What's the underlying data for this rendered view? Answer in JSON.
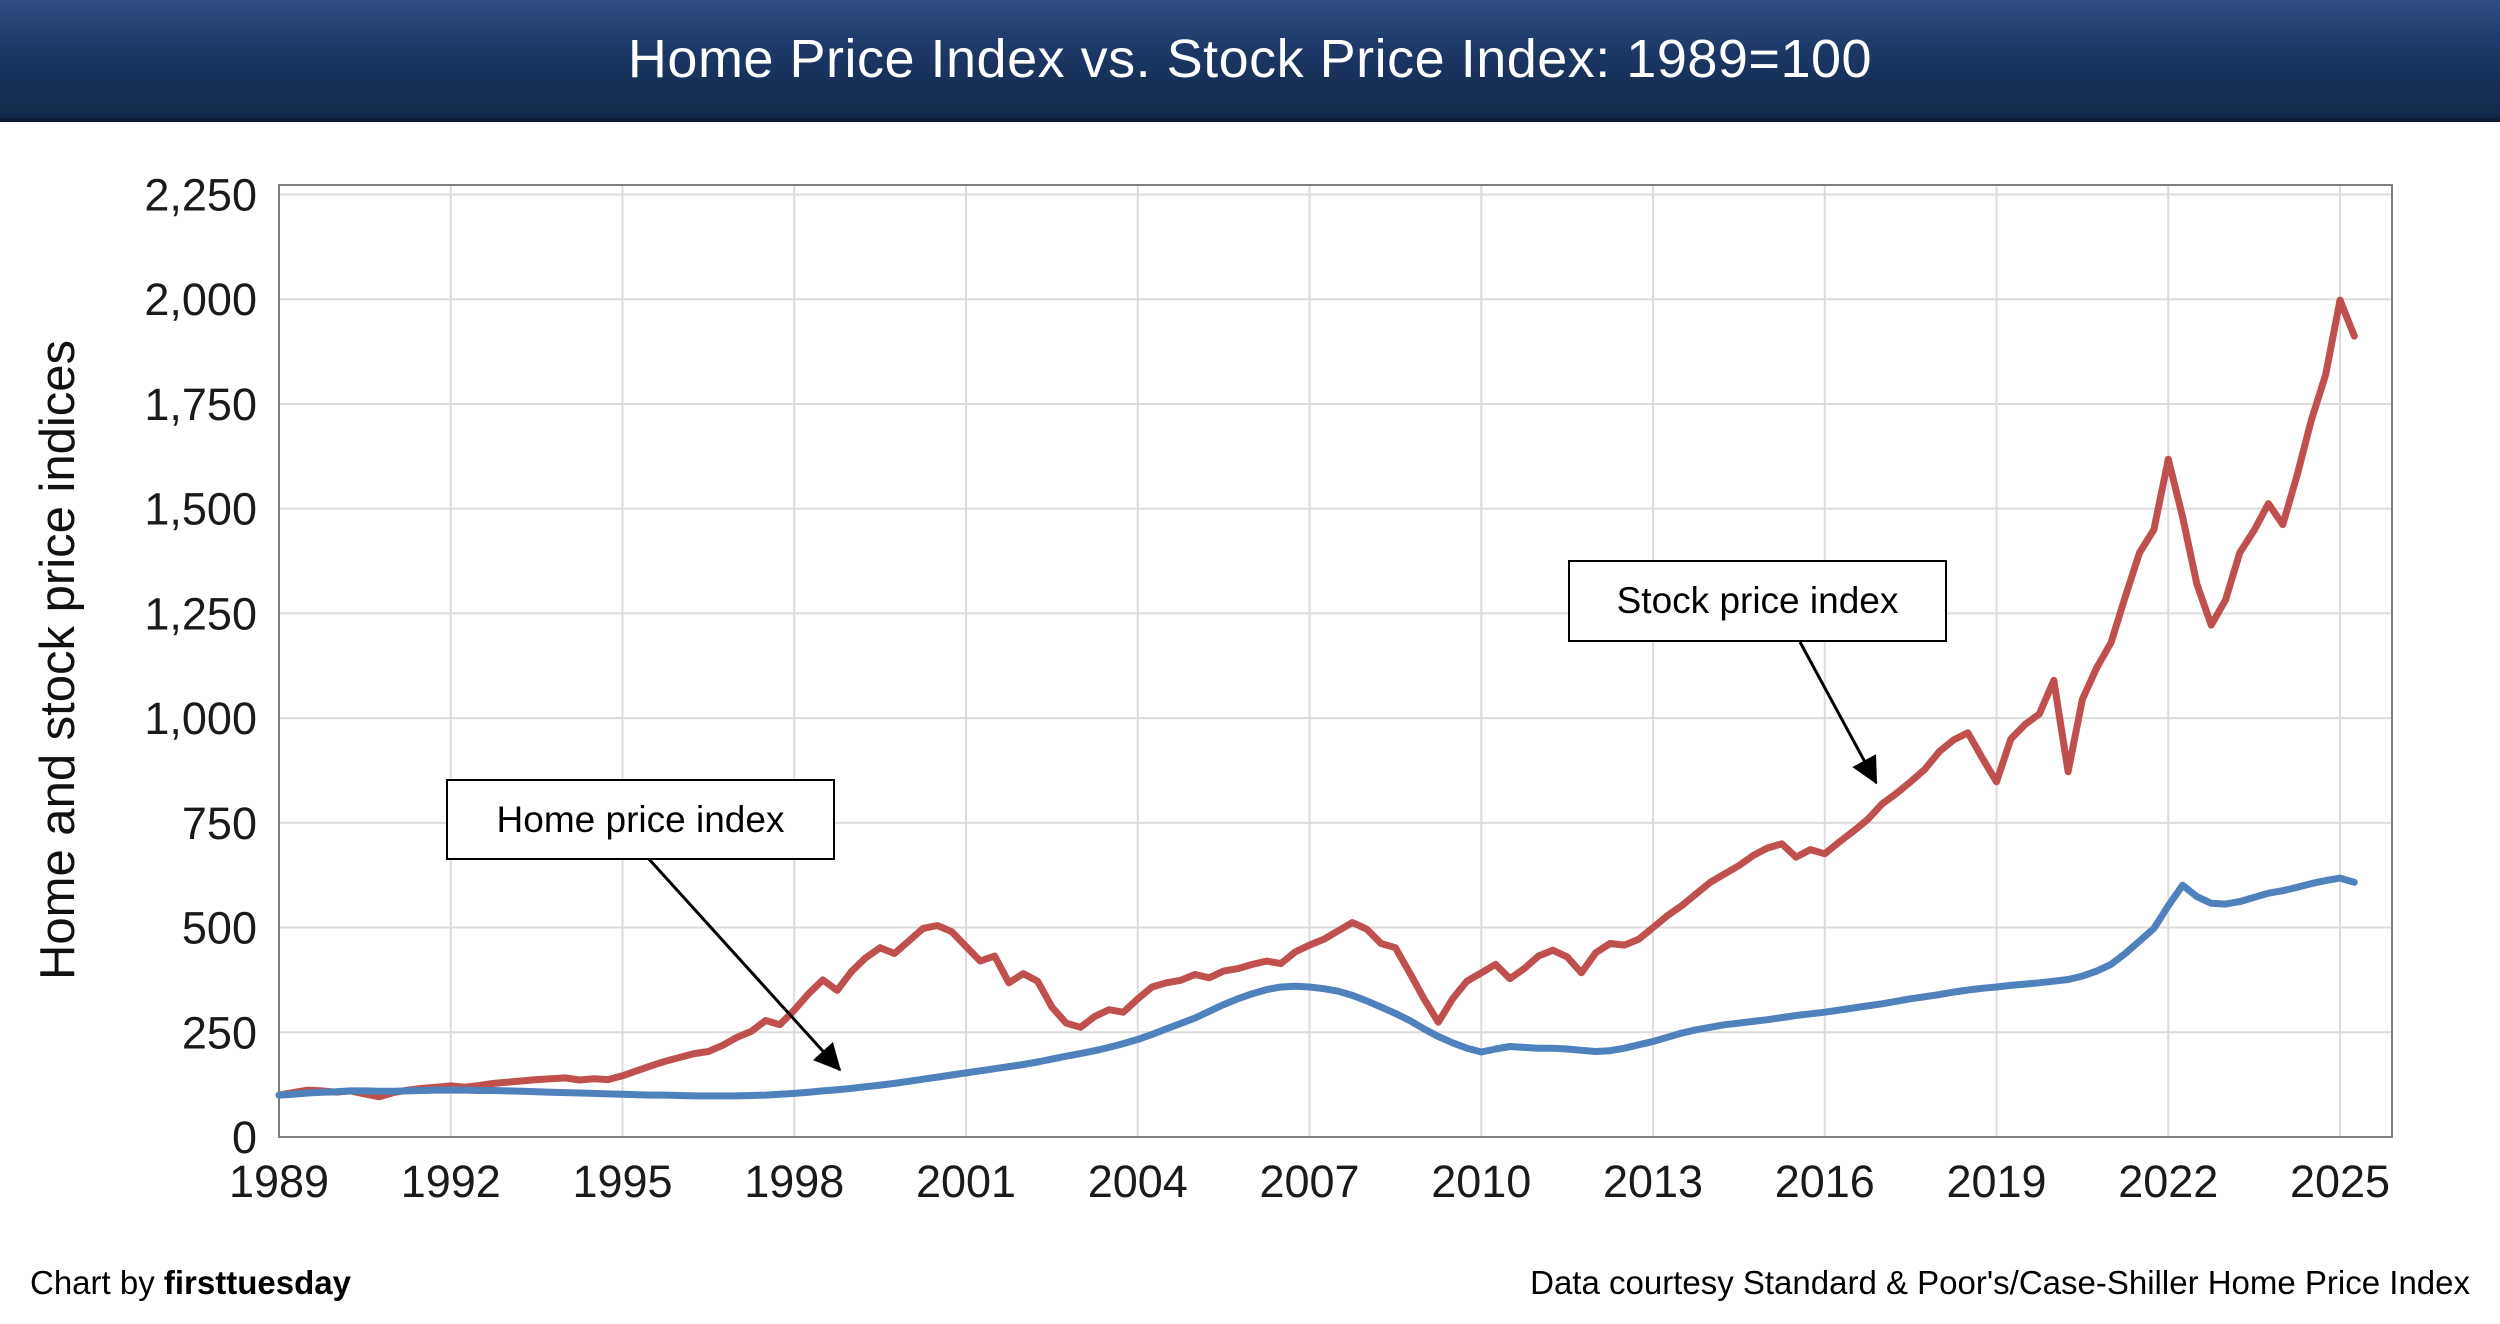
{
  "header": {
    "title": "Home Price Index vs. Stock Price Index: 1989=100"
  },
  "axes": {
    "y_label": "Home and stock price indices"
  },
  "colors": {
    "title_bar": "#1c3766",
    "stock_line": "#c0504d",
    "home_line": "#4f81bd",
    "gridline": "#dcdcdc",
    "plot_border": "#7f7f7f"
  },
  "annotations": [
    {
      "id": "stock",
      "label": "Stock price index",
      "target_year": 2016.9,
      "target_value": 845
    },
    {
      "id": "home",
      "label": "Home price index",
      "target_year": 1998.8,
      "target_value": 160
    }
  ],
  "footer": {
    "chart_by_prefix": "Chart by ",
    "brand": "firsttuesday",
    "data_courtesy": "Data courtesy Standard & Poor's/Case-Shiller Home Price Index"
  },
  "chart_data": {
    "type": "line",
    "title": "Home Price Index vs. Stock Price Index: 1989=100",
    "xlabel": "",
    "ylabel": "Home and stock price indices",
    "grid": true,
    "legend_position": "annotation-callouts",
    "xlim": [
      1989,
      2025.9
    ],
    "ylim": [
      0,
      2250
    ],
    "x_start": 1989,
    "x_step": 0.25,
    "x_ticks": [
      1989,
      1992,
      1995,
      1998,
      2001,
      2004,
      2007,
      2010,
      2013,
      2016,
      2019,
      2022,
      2025
    ],
    "x_tick_labels": [
      "1989",
      "1992",
      "1995",
      "1998",
      "2001",
      "2004",
      "2007",
      "2010",
      "2013",
      "2016",
      "2019",
      "2022",
      "2025"
    ],
    "y_tick_values": [
      0,
      250,
      500,
      750,
      1000,
      1250,
      1500,
      1750,
      2000,
      2250
    ],
    "y_tick_labels": [
      "0",
      "250",
      "500",
      "750",
      "1,000",
      "1,250",
      "1,500",
      "1,750",
      "2,000",
      "2,250"
    ],
    "series": [
      {
        "id": "stock-price-index",
        "name": "Stock price index",
        "color": "#c0504d",
        "values": [
          100,
          106,
          112,
          110,
          107,
          110,
          103,
          96,
          106,
          112,
          116,
          119,
          122,
          119,
          123,
          128,
          131,
          134,
          137,
          139,
          141,
          136,
          139,
          137,
          146,
          158,
          170,
          181,
          190,
          199,
          204,
          219,
          238,
          252,
          278,
          268,
          303,
          342,
          375,
          350,
          395,
          428,
          452,
          438,
          468,
          498,
          505,
          490,
          455,
          420,
          432,
          368,
          390,
          372,
          310,
          272,
          262,
          288,
          304,
          298,
          330,
          358,
          368,
          374,
          388,
          380,
          396,
          402,
          412,
          420,
          414,
          442,
          458,
          472,
          492,
          512,
          496,
          462,
          452,
          392,
          330,
          274,
          330,
          372,
          392,
          412,
          378,
          402,
          432,
          446,
          430,
          392,
          440,
          462,
          458,
          472,
          500,
          528,
          552,
          580,
          608,
          628,
          648,
          672,
          690,
          700,
          668,
          686,
          676,
          704,
          730,
          758,
          795,
          820,
          848,
          878,
          920,
          948,
          965,
          905,
          848,
          950,
          985,
          1010,
          1090,
          872,
          1045,
          1120,
          1180,
          1290,
          1395,
          1450,
          1618,
          1480,
          1320,
          1222,
          1282,
          1395,
          1448,
          1512,
          1462,
          1580,
          1712,
          1820,
          1998,
          1912
        ]
      },
      {
        "id": "home-price-index",
        "name": "Home price index",
        "color": "#4f81bd",
        "values": [
          100,
          102,
          105,
          107,
          108,
          110,
          110,
          109,
          109,
          110,
          111,
          112,
          112,
          112,
          111,
          111,
          110,
          109,
          108,
          107,
          106,
          105,
          104,
          103,
          102,
          101,
          100,
          100,
          99,
          98,
          98,
          98,
          98,
          99,
          100,
          102,
          104,
          107,
          110,
          113,
          116,
          120,
          124,
          128,
          133,
          138,
          143,
          148,
          153,
          158,
          163,
          168,
          173,
          179,
          186,
          193,
          199,
          206,
          214,
          223,
          233,
          245,
          258,
          271,
          284,
          300,
          316,
          330,
          342,
          352,
          358,
          360,
          358,
          354,
          348,
          338,
          325,
          310,
          295,
          278,
          258,
          240,
          225,
          212,
          203,
          210,
          216,
          214,
          212,
          212,
          210,
          207,
          204,
          206,
          212,
          220,
          228,
          238,
          248,
          256,
          262,
          268,
          272,
          276,
          280,
          285,
          290,
          294,
          298,
          303,
          308,
          313,
          318,
          324,
          330,
          335,
          340,
          346,
          351,
          355,
          358,
          362,
          365,
          368,
          372,
          376,
          384,
          396,
          412,
          438,
          468,
          498,
          552,
          601,
          574,
          558,
          556,
          562,
          572,
          582,
          588,
          596,
          605,
          612,
          618,
          608
        ]
      }
    ]
  }
}
